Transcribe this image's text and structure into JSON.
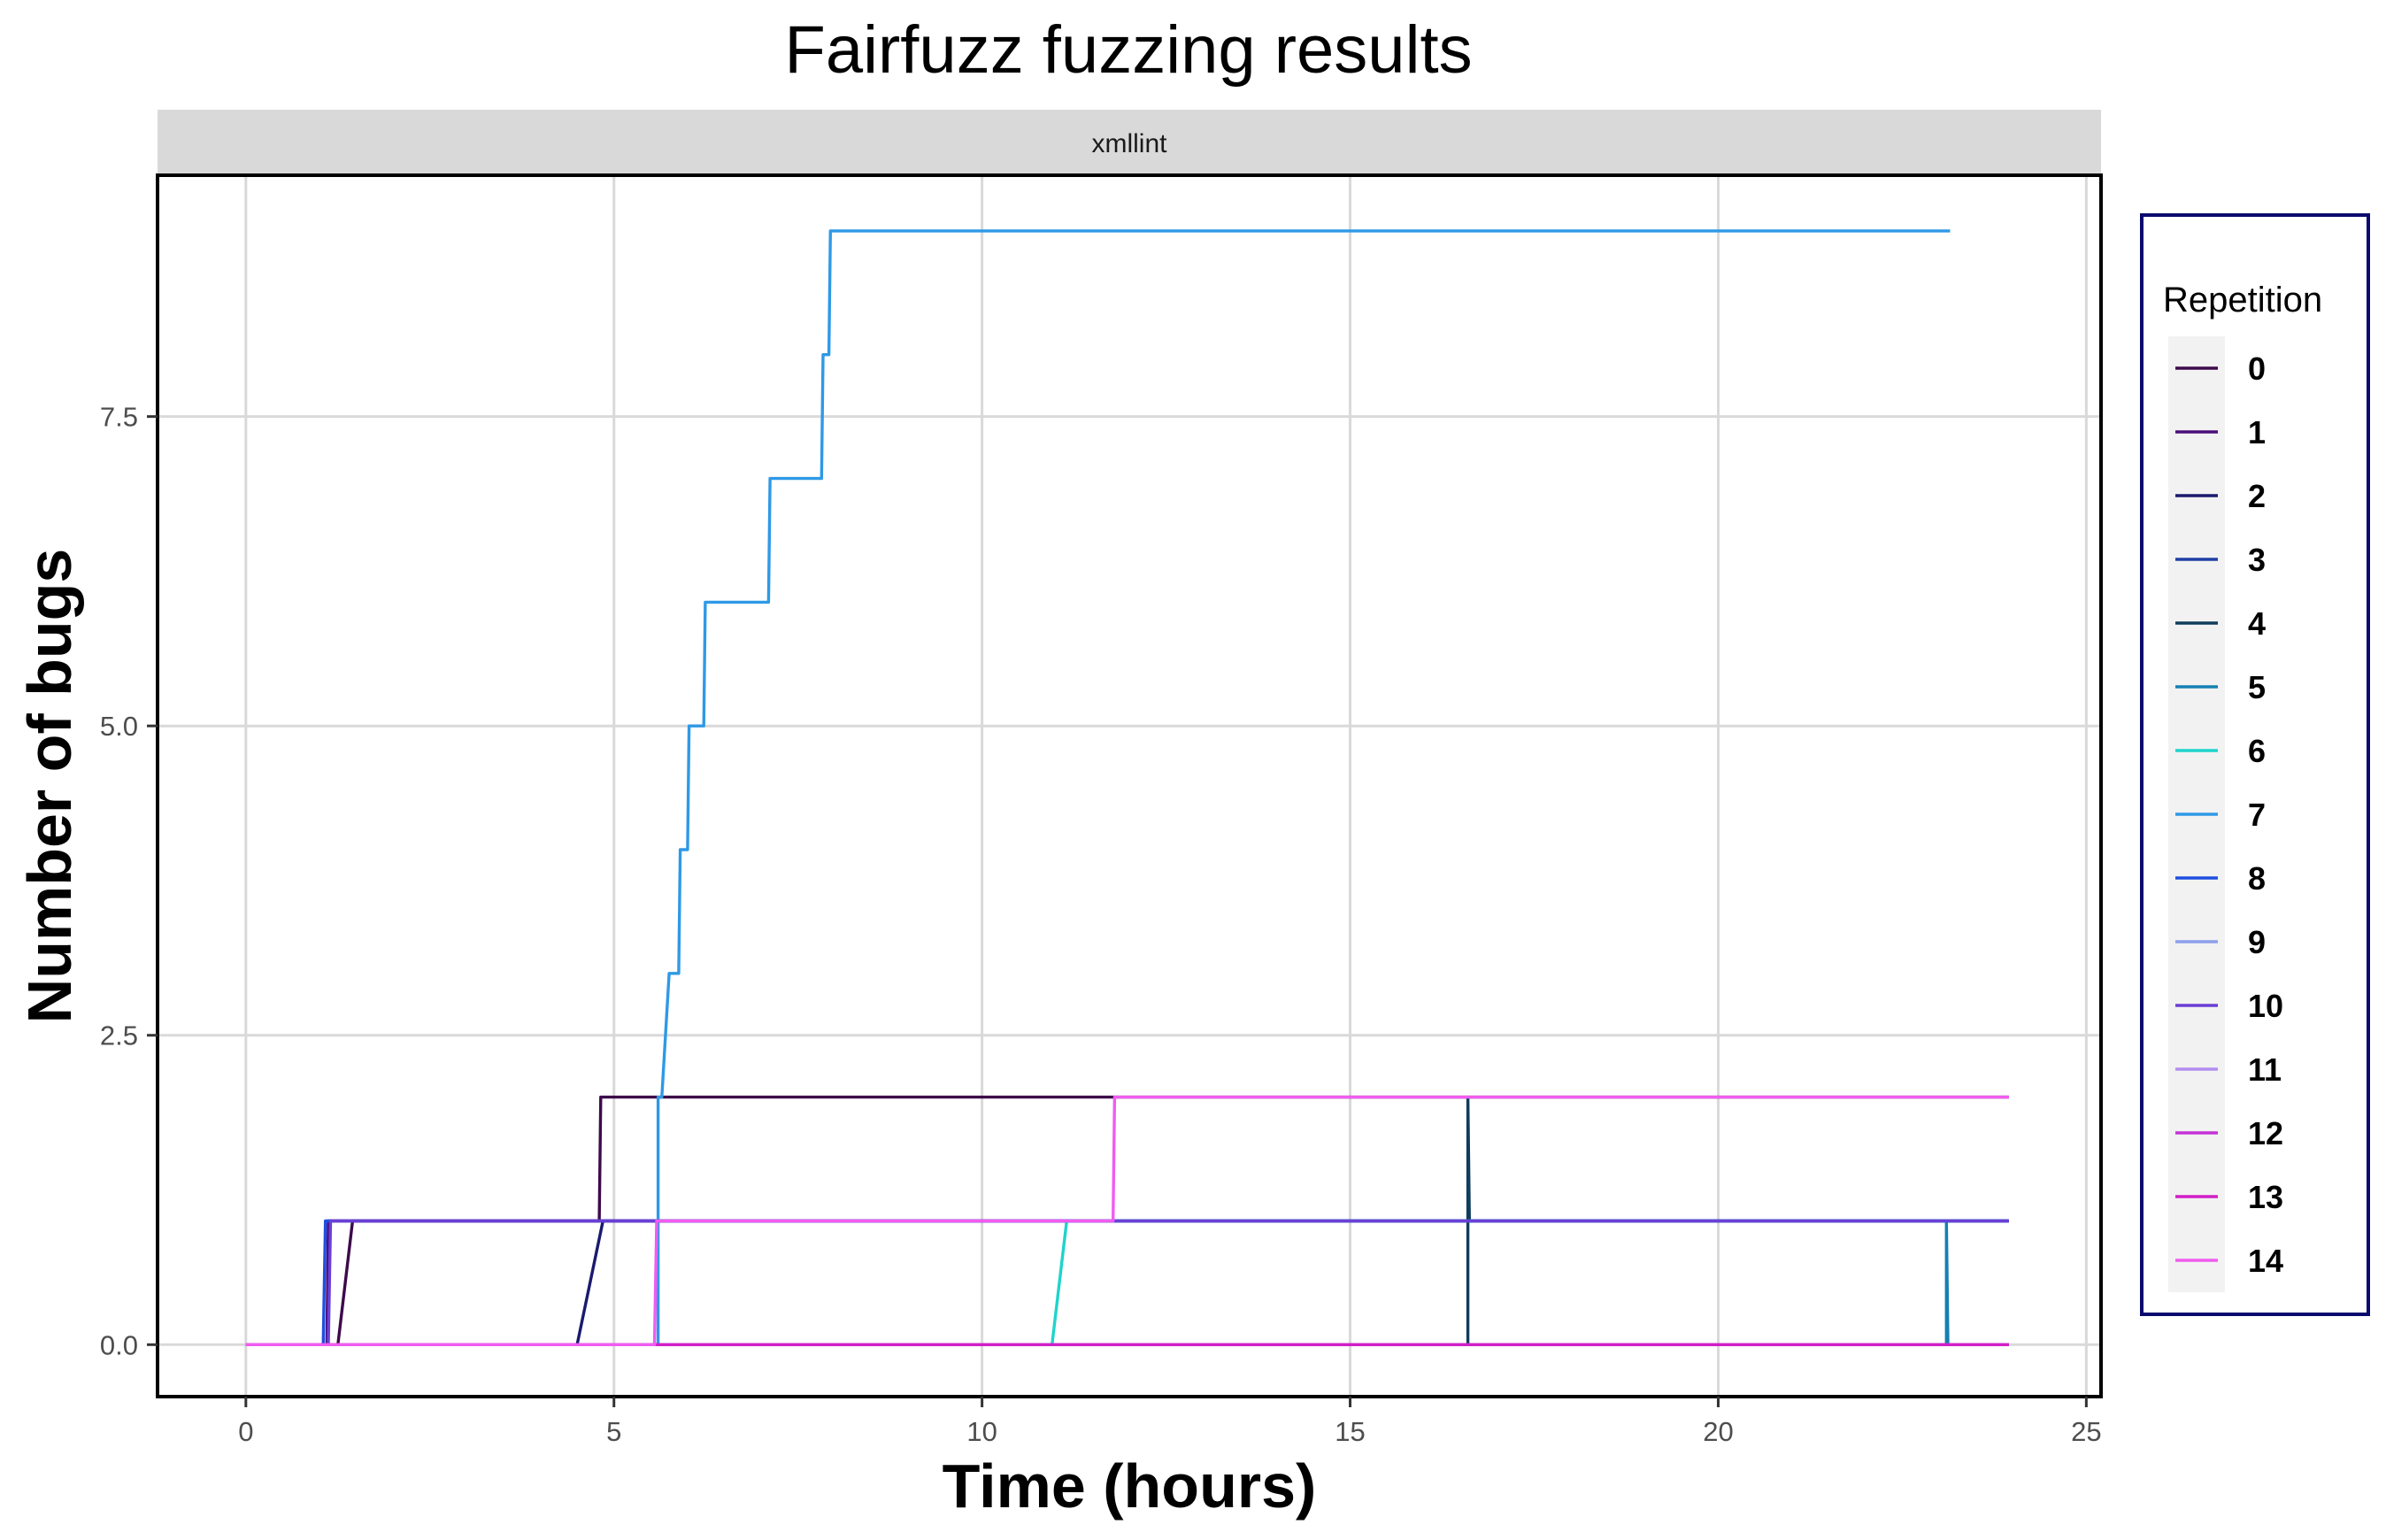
{
  "chart_data": {
    "type": "line",
    "title": "Fairfuzz fuzzing results",
    "facet_label": "xmllint",
    "xlabel": "Time (hours)",
    "ylabel": "Number of bugs",
    "xlim": [
      -1.2,
      25.2
    ],
    "ylim": [
      -0.42,
      9.45
    ],
    "x_ticks": [
      0,
      5,
      10,
      15,
      20,
      25
    ],
    "x_tick_labels": [
      "0",
      "5",
      "10",
      "15",
      "20",
      "25"
    ],
    "y_ticks": [
      0,
      2.5,
      5,
      7.5
    ],
    "y_tick_labels": [
      "0.0",
      "2.5",
      "5.0",
      "7.5"
    ],
    "grid": true,
    "legend": {
      "title": "Repetition",
      "placement": "right"
    },
    "series": [
      {
        "name": "0",
        "color": "#3d0a4a",
        "points": [
          [
            0,
            0
          ],
          [
            1.25,
            0
          ],
          [
            1.45,
            1
          ],
          [
            4.8,
            1
          ],
          [
            4.82,
            2
          ],
          [
            23.95,
            2
          ]
        ]
      },
      {
        "name": "1",
        "color": "#4a0f7a",
        "points": [
          [
            0,
            0
          ],
          [
            1.1,
            0
          ],
          [
            1.12,
            1
          ],
          [
            23.95,
            1
          ]
        ]
      },
      {
        "name": "2",
        "color": "#1a1a6e",
        "points": [
          [
            0,
            0
          ],
          [
            4.5,
            0
          ],
          [
            4.85,
            1
          ],
          [
            23.95,
            1
          ]
        ]
      },
      {
        "name": "3",
        "color": "#1f3fa6",
        "points": [
          [
            0,
            0
          ],
          [
            23.95,
            0
          ]
        ]
      },
      {
        "name": "4",
        "color": "#0f3d5c",
        "points": [
          [
            0,
            0
          ],
          [
            16.6,
            0
          ],
          [
            16.6,
            2
          ],
          [
            16.62,
            1
          ],
          [
            23.95,
            1
          ]
        ]
      },
      {
        "name": "5",
        "color": "#1580b3",
        "points": [
          [
            0,
            0
          ],
          [
            23.1,
            0
          ],
          [
            23.1,
            1
          ],
          [
            23.12,
            0
          ],
          [
            23.95,
            0
          ]
        ]
      },
      {
        "name": "6",
        "color": "#1ed4cc",
        "points": [
          [
            0,
            0
          ],
          [
            10.95,
            0
          ],
          [
            11.15,
            1
          ],
          [
            23.95,
            1
          ]
        ]
      },
      {
        "name": "7",
        "color": "#2f99e6",
        "points": [
          [
            0,
            0
          ],
          [
            5.6,
            0
          ],
          [
            5.6,
            2
          ],
          [
            5.65,
            2
          ],
          [
            5.75,
            3
          ],
          [
            5.88,
            3
          ],
          [
            5.9,
            4
          ],
          [
            6.0,
            4
          ],
          [
            6.02,
            5
          ],
          [
            6.22,
            5
          ],
          [
            6.24,
            6
          ],
          [
            7.1,
            6
          ],
          [
            7.12,
            7
          ],
          [
            7.82,
            7
          ],
          [
            7.84,
            8
          ],
          [
            7.92,
            8
          ],
          [
            7.94,
            9
          ],
          [
            23.15,
            9
          ]
        ]
      },
      {
        "name": "8",
        "color": "#1f4fe0",
        "points": [
          [
            0,
            0
          ],
          [
            1.05,
            0
          ],
          [
            1.08,
            1
          ],
          [
            23.95,
            1
          ]
        ]
      },
      {
        "name": "9",
        "color": "#8ca0eb",
        "points": [
          [
            0,
            0
          ],
          [
            23.95,
            0
          ]
        ]
      },
      {
        "name": "10",
        "color": "#6a3fd6",
        "points": [
          [
            0,
            0
          ],
          [
            1.12,
            0
          ],
          [
            1.15,
            1
          ],
          [
            23.95,
            1
          ]
        ]
      },
      {
        "name": "11",
        "color": "#b38ef0",
        "points": [
          [
            0,
            0
          ],
          [
            23.95,
            0
          ]
        ]
      },
      {
        "name": "12",
        "color": "#c433d6",
        "points": [
          [
            0,
            0
          ],
          [
            23.95,
            0
          ]
        ]
      },
      {
        "name": "13",
        "color": "#d11fc7",
        "points": [
          [
            0,
            0
          ],
          [
            23.95,
            0
          ]
        ]
      },
      {
        "name": "14",
        "color": "#f05cf0",
        "points": [
          [
            0,
            0
          ],
          [
            5.55,
            0
          ],
          [
            5.58,
            1
          ],
          [
            11.78,
            1
          ],
          [
            11.8,
            2
          ],
          [
            23.95,
            2
          ]
        ]
      }
    ]
  }
}
